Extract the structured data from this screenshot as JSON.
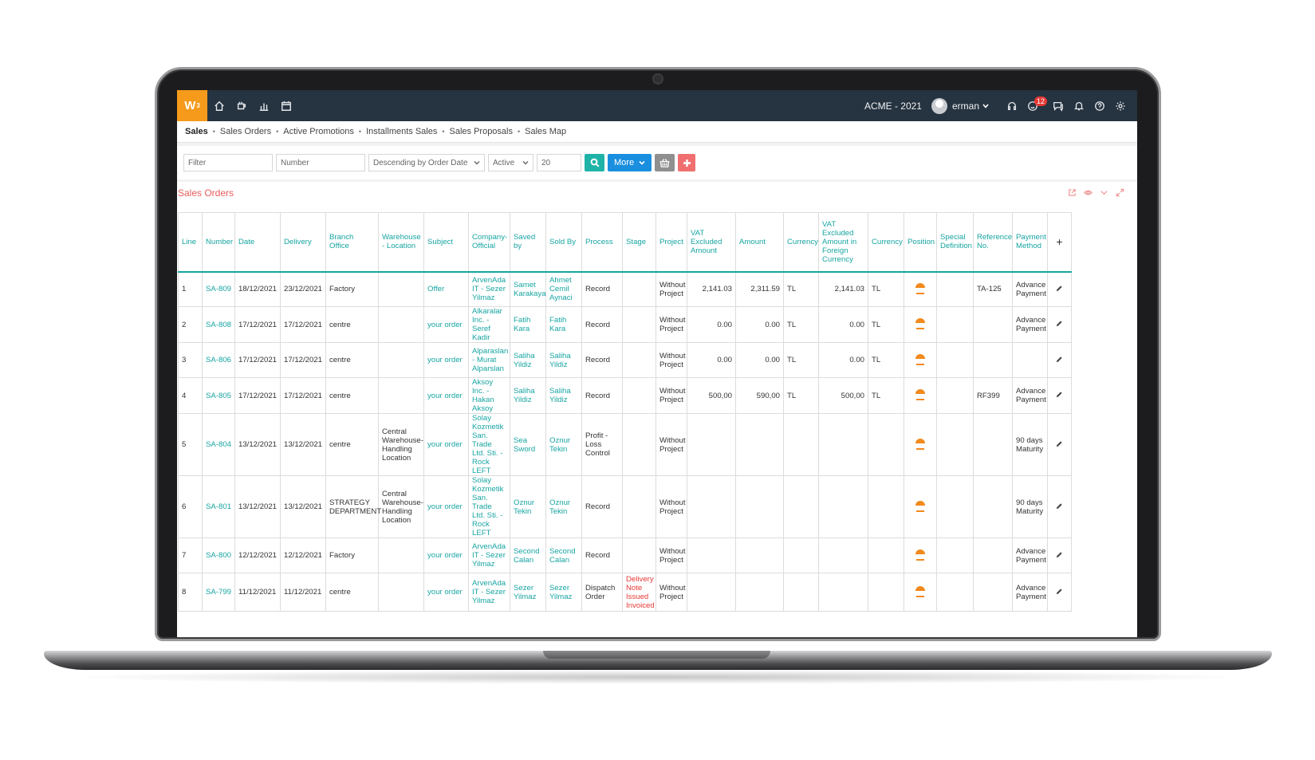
{
  "app": {
    "logo_text": "W",
    "logo_sup": "3",
    "company": "ACME - 2021",
    "user": "erman",
    "notification_count": "12",
    "accent_color": "#f59a1a",
    "topbar_color": "#263340"
  },
  "nav_icons": [
    "home-icon",
    "coffee-icon",
    "bar-chart-icon",
    "calendar-icon"
  ],
  "topbar_icons": [
    "headset-icon",
    "smiley-icon",
    "chat-icon",
    "bell-icon",
    "help-icon",
    "gear-icon"
  ],
  "breadcrumb": {
    "root": "Sales",
    "items": [
      "Sales Orders",
      "Active Promotions",
      "Installments Sales",
      "Sales Proposals",
      "Sales Map"
    ]
  },
  "filters": {
    "filter_placeholder": "Filter",
    "number_placeholder": "Number",
    "sort_value": "Descending by Order Date",
    "status_value": "Active",
    "page_size": "20",
    "more_label": "More"
  },
  "panel": {
    "title": "Sales Orders",
    "title_color": "#e85c5c"
  },
  "table": {
    "headers": [
      "Line",
      "Number",
      "Date",
      "Delivery",
      "Branch Office",
      "Warehouse - Location",
      "Subject",
      "Company-Official",
      "Saved by",
      "Sold By",
      "Process",
      "Stage",
      "Project",
      "VAT Excluded Amount",
      "Amount",
      "Currency",
      "VAT Excluded Amount in Foreign Currency",
      "Currency",
      "Position",
      "Special Definition",
      "Reference No.",
      "Payment Method"
    ],
    "rows": [
      {
        "line": "1",
        "number": "SA-809",
        "date": "18/12/2021",
        "delivery": "23/12/2021",
        "branch": "Factory",
        "warehouse": "",
        "subject": "Offer",
        "company": "ArvenAda IT - Sezer Yilmaz",
        "saved_by": "Samet Karakaya",
        "sold_by": "Ahmet Cemil Aynaci",
        "process": "Record",
        "stage": "",
        "project": "Without Project",
        "vat_excl": "2,141.03",
        "amount": "2,311.59",
        "currency": "TL",
        "vat_excl_fc": "2,141.03",
        "currency2": "TL",
        "special": "",
        "reference": "TA-125",
        "payment": "Advance Payment"
      },
      {
        "line": "2",
        "number": "SA-808",
        "date": "17/12/2021",
        "delivery": "17/12/2021",
        "branch": "centre",
        "warehouse": "",
        "subject": "your order",
        "company": "Alkaralar Inc. - Seref Kadir",
        "saved_by": "Fatih Kara",
        "sold_by": "Fatih Kara",
        "process": "Record",
        "stage": "",
        "project": "Without Project",
        "vat_excl": "0.00",
        "amount": "0.00",
        "currency": "TL",
        "vat_excl_fc": "0.00",
        "currency2": "TL",
        "special": "",
        "reference": "",
        "payment": "Advance Payment"
      },
      {
        "line": "3",
        "number": "SA-806",
        "date": "17/12/2021",
        "delivery": "17/12/2021",
        "branch": "centre",
        "warehouse": "",
        "subject": "your order",
        "company": "Alparaslan - Murat Alparslan",
        "saved_by": "Saliha Yildiz",
        "sold_by": "Saliha Yildiz",
        "process": "Record",
        "stage": "",
        "project": "Without Project",
        "vat_excl": "0.00",
        "amount": "0.00",
        "currency": "TL",
        "vat_excl_fc": "0.00",
        "currency2": "TL",
        "special": "",
        "reference": "",
        "payment": ""
      },
      {
        "line": "4",
        "number": "SA-805",
        "date": "17/12/2021",
        "delivery": "17/12/2021",
        "branch": "centre",
        "warehouse": "",
        "subject": "your order",
        "company": "Aksoy Inc. - Hakan Aksoy",
        "saved_by": "Saliha Yildiz",
        "sold_by": "Saliha Yildiz",
        "process": "Record",
        "stage": "",
        "project": "Without Project",
        "vat_excl": "500,00",
        "amount": "590,00",
        "currency": "TL",
        "vat_excl_fc": "500,00",
        "currency2": "TL",
        "special": "",
        "reference": "RF399",
        "payment": "Advance Payment"
      },
      {
        "line": "5",
        "number": "SA-804",
        "date": "13/12/2021",
        "delivery": "13/12/2021",
        "branch": "centre",
        "warehouse": "Central Warehouse-Handling Location",
        "subject": "your order",
        "company": "Solay Kozmetik San. Trade Ltd. Sti. - Rock LEFT",
        "saved_by": "Sea Sword",
        "sold_by": "Oznur Tekin",
        "process": "Profit - Loss Control",
        "stage": "",
        "project": "Without Project",
        "vat_excl": "",
        "amount": "",
        "currency": "",
        "vat_excl_fc": "",
        "currency2": "",
        "special": "",
        "reference": "",
        "payment": "90 days Maturity"
      },
      {
        "line": "6",
        "number": "SA-801",
        "date": "13/12/2021",
        "delivery": "13/12/2021",
        "branch": "STRATEGY DEPARTMENT",
        "warehouse": "Central Warehouse-Handling Location",
        "subject": "your order",
        "company": "Solay Kozmetik San. Trade Ltd. Sti. - Rock LEFT",
        "saved_by": "Oznur Tekin",
        "sold_by": "Oznur Tekin",
        "process": "Record",
        "stage": "",
        "project": "Without Project",
        "vat_excl": "",
        "amount": "",
        "currency": "",
        "vat_excl_fc": "",
        "currency2": "",
        "special": "",
        "reference": "",
        "payment": "90 days Maturity"
      },
      {
        "line": "7",
        "number": "SA-800",
        "date": "12/12/2021",
        "delivery": "12/12/2021",
        "branch": "Factory",
        "warehouse": "",
        "subject": "your order",
        "company": "ArvenAda IT - Sezer Yilmaz",
        "saved_by": "Second Calan",
        "sold_by": "Second Calan",
        "process": "Record",
        "stage": "",
        "project": "Without Project",
        "vat_excl": "",
        "amount": "",
        "currency": "",
        "vat_excl_fc": "",
        "currency2": "",
        "special": "",
        "reference": "",
        "payment": "Advance Payment"
      },
      {
        "line": "8",
        "number": "SA-799",
        "date": "11/12/2021",
        "delivery": "11/12/2021",
        "branch": "centre",
        "warehouse": "",
        "subject": "your order",
        "company": "ArvenAda IT - Sezer Yilmaz",
        "saved_by": "Sezer Yilmaz",
        "sold_by": "Sezer Yilmaz",
        "process": "Dispatch Order",
        "stage": "Delivery Note Issued Invoiced",
        "project": "Without Project",
        "vat_excl": "",
        "amount": "",
        "currency": "",
        "vat_excl_fc": "",
        "currency2": "",
        "special": "",
        "reference": "",
        "payment": "Advance Payment"
      }
    ]
  }
}
